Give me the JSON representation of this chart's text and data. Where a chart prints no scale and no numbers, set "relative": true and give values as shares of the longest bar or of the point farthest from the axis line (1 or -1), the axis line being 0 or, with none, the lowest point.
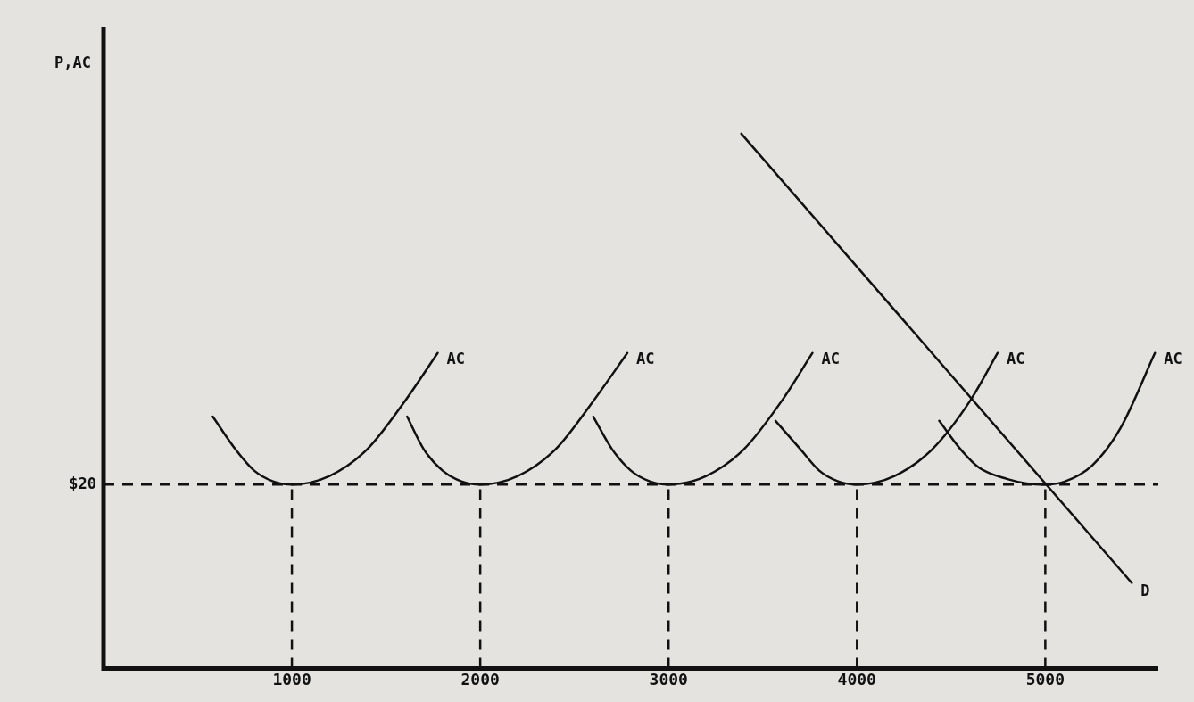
{
  "chart_data": {
    "type": "line",
    "relative": true,
    "ylabel": "P,AC",
    "xlim": [
      0,
      5600
    ],
    "xticks": [
      1000,
      2000,
      3000,
      4000,
      5000
    ],
    "grid": false,
    "legend": false,
    "marker": "none",
    "line_style": "solid",
    "annotations": [
      "$20"
    ],
    "series": [
      {
        "name": "AC",
        "color": "#111111",
        "x": [
          580,
          700,
          800,
          900,
          1000,
          1200,
          1400,
          1600,
          1774
        ],
        "values": [
          0.471,
          0.41,
          0.37,
          0.35,
          0.344,
          0.36,
          0.41,
          0.5,
          0.59
        ]
      },
      {
        "name": "AC",
        "color": "#111111",
        "x": [
          1612,
          1700,
          1800,
          1900,
          2000,
          2200,
          2400,
          2600,
          2781
        ],
        "values": [
          0.471,
          0.41,
          0.37,
          0.35,
          0.344,
          0.36,
          0.41,
          0.5,
          0.59
        ]
      },
      {
        "name": "AC",
        "color": "#111111",
        "x": [
          2600,
          2700,
          2800,
          2900,
          3000,
          3200,
          3400,
          3600,
          3764
        ],
        "values": [
          0.471,
          0.41,
          0.37,
          0.35,
          0.344,
          0.36,
          0.41,
          0.5,
          0.59
        ]
      },
      {
        "name": "AC",
        "color": "#111111",
        "x": [
          3568,
          3700,
          3800,
          3900,
          4000,
          4200,
          4400,
          4600,
          4747
        ],
        "values": [
          0.463,
          0.41,
          0.37,
          0.35,
          0.344,
          0.36,
          0.41,
          0.5,
          0.59
        ]
      },
      {
        "name": "AC",
        "color": "#111111",
        "x": [
          4437,
          4550,
          4650,
          4800,
          4900,
          5000,
          5100,
          5250,
          5400,
          5582
        ],
        "values": [
          0.463,
          0.41,
          0.375,
          0.354,
          0.346,
          0.344,
          0.349,
          0.38,
          0.45,
          0.59
        ]
      },
      {
        "name": "D",
        "color": "#111111",
        "x": [
          3386,
          5459
        ],
        "values": [
          1.0,
          0.16
        ]
      }
    ],
    "ref_lines": [
      {
        "axis": "y",
        "value": 0.344,
        "color": "#111111",
        "line_style": "dashed"
      },
      {
        "axis": "x",
        "value": 1000,
        "color": "#111111",
        "line_style": "dashed"
      },
      {
        "axis": "x",
        "value": 2000,
        "color": "#111111",
        "line_style": "dashed"
      },
      {
        "axis": "x",
        "value": 3000,
        "color": "#111111",
        "line_style": "dashed"
      },
      {
        "axis": "x",
        "value": 4000,
        "color": "#111111",
        "line_style": "dashed"
      },
      {
        "axis": "x",
        "value": 5000,
        "color": "#111111",
        "line_style": "dashed"
      }
    ]
  }
}
